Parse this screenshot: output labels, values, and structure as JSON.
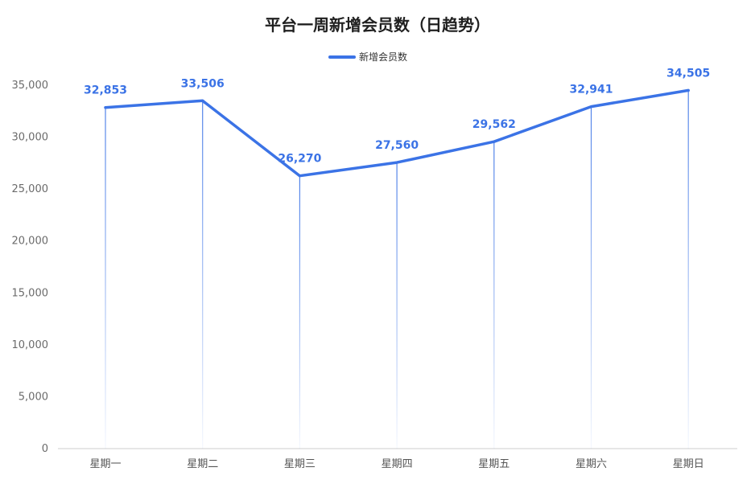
{
  "chart_data": {
    "type": "line",
    "title": "平台一周新增会员数（日趋势）",
    "categories": [
      "星期一",
      "星期二",
      "星期三",
      "星期四",
      "星期五",
      "星期六",
      "星期日"
    ],
    "series": [
      {
        "name": "新增会员数",
        "values": [
          32853,
          33506,
          26270,
          27560,
          29562,
          32941,
          34505
        ],
        "color": "#3b73e6"
      }
    ],
    "data_labels": [
      "32,853",
      "33,506",
      "26,270",
      "27,560",
      "29,562",
      "32,941",
      "34,505"
    ],
    "y_ticks": [
      "0",
      "5,000",
      "10,000",
      "15,000",
      "20,000",
      "25,000",
      "30,000",
      "35,000"
    ],
    "ylim": [
      0,
      35000
    ],
    "legend_position": "top-center",
    "grid": false,
    "drop_lines": true
  }
}
